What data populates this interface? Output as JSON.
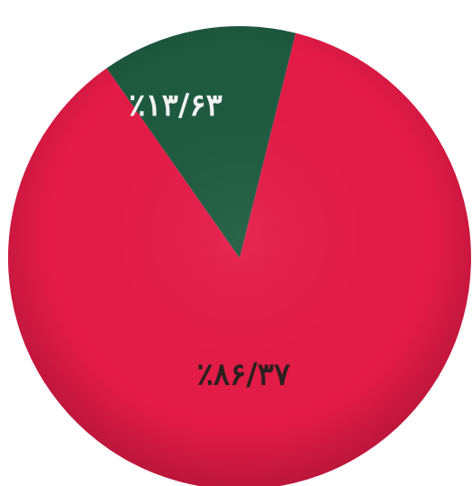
{
  "chart_data": {
    "type": "pie",
    "title": "",
    "slices": [
      {
        "label": "٪۸۶/۳۷",
        "value": 86.37,
        "color": "#e41b47",
        "label_color": "#2a1f1f"
      },
      {
        "label": "٪۱۳/۶۳",
        "value": 13.63,
        "color": "#1d5a40",
        "label_color": "#f2f2f2"
      }
    ],
    "start_angle_deg": 0,
    "direction": "clockwise"
  }
}
